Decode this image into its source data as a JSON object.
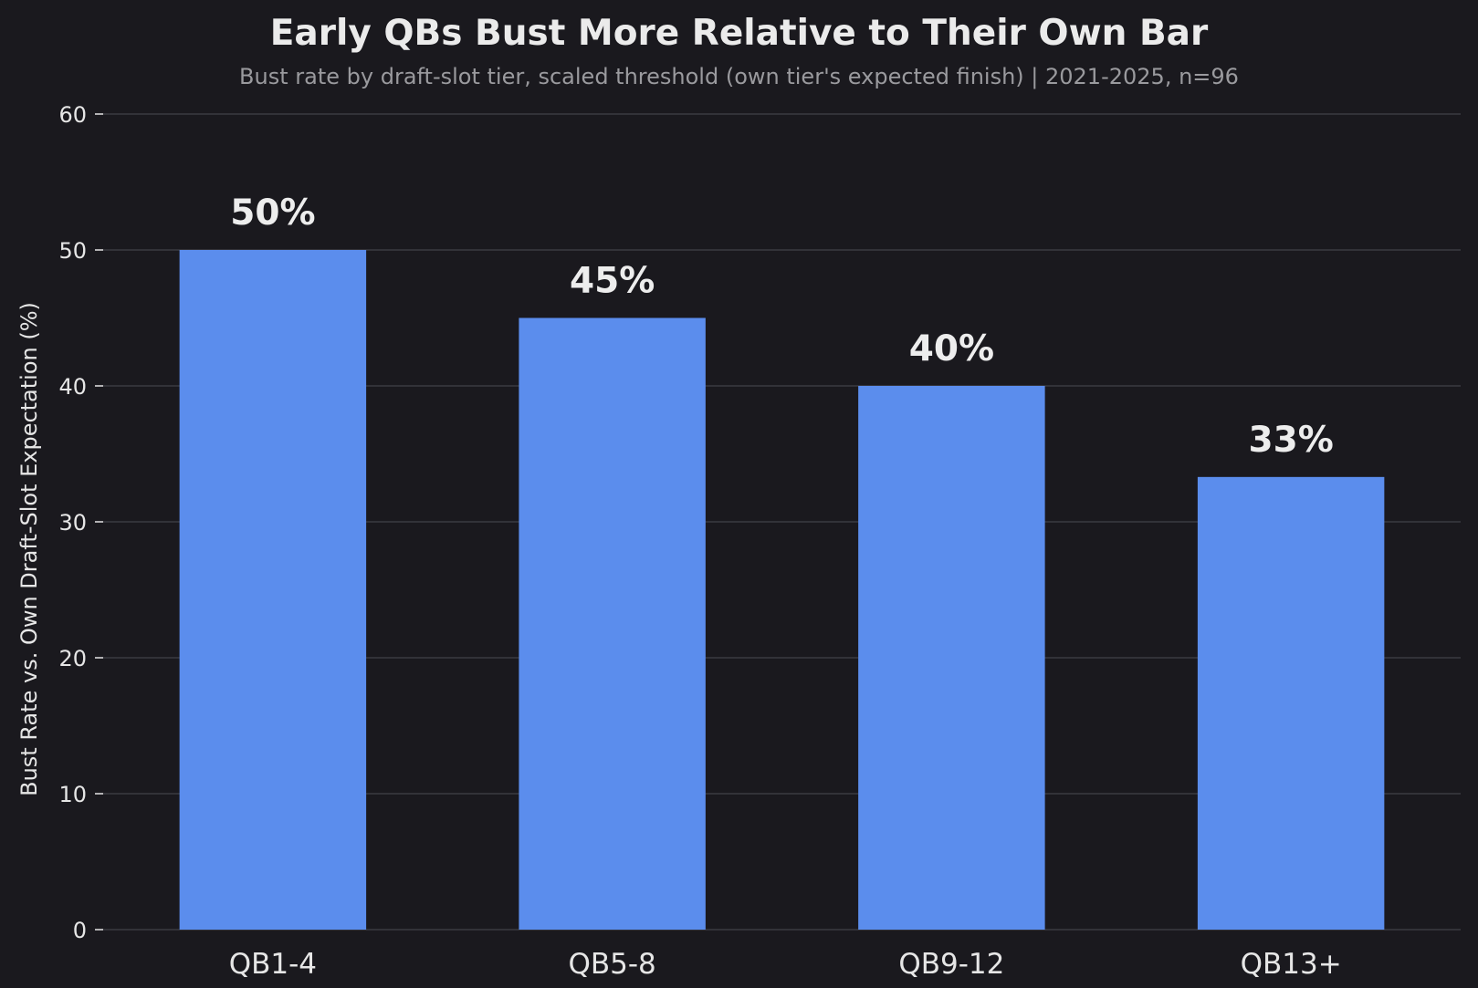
{
  "chart_data": {
    "type": "bar",
    "title": "Early QBs Bust More Relative to Their Own Bar",
    "subtitle": "Bust rate by draft-slot tier, scaled threshold (own tier's expected finish) | 2021-2025, n=96",
    "xlabel": "",
    "ylabel": "Bust Rate vs. Own Draft-Slot Expectation (%)",
    "categories": [
      "QB1-4",
      "QB5-8",
      "QB9-12",
      "QB13+"
    ],
    "values": [
      50,
      45,
      40,
      33.3
    ],
    "data_labels": [
      "50%",
      "45%",
      "40%",
      "33%"
    ],
    "ylim": [
      0,
      60
    ],
    "yticks": [
      0,
      10,
      20,
      30,
      40,
      50,
      60
    ],
    "grid": true,
    "bar_color": "#5b8ded",
    "background": "#1a191e"
  }
}
